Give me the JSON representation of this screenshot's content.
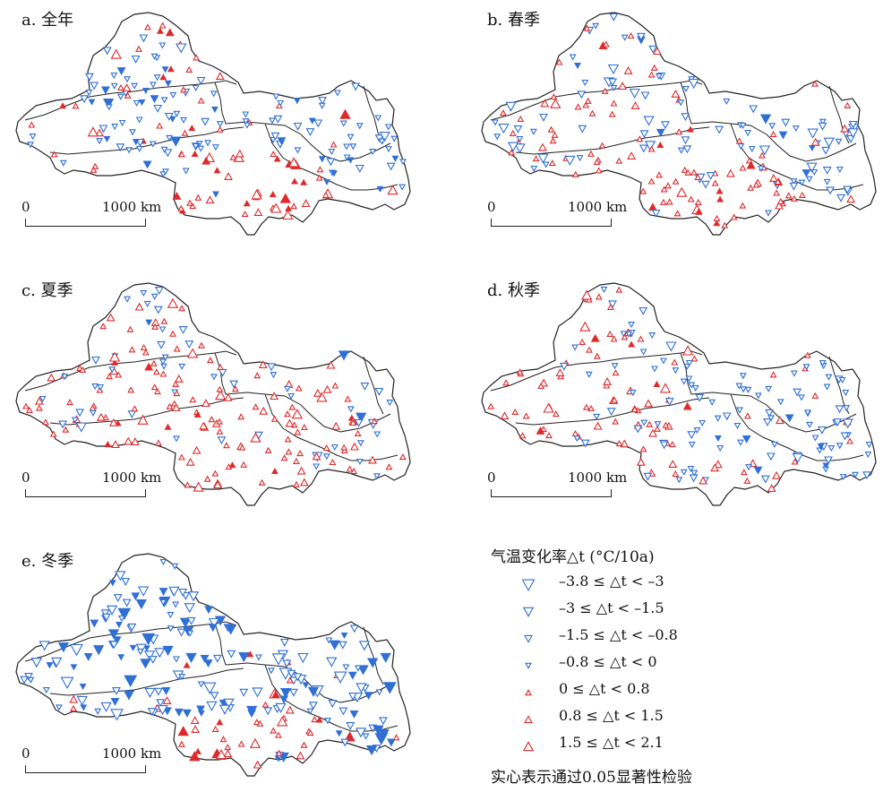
{
  "panels": [
    {
      "label": "a. 全年",
      "seed": 11,
      "profile": "annual"
    },
    {
      "label": "b. 春季",
      "seed": 23,
      "profile": "spring"
    },
    {
      "label": "c. 夏季",
      "seed": 37,
      "profile": "summer"
    },
    {
      "label": "d. 秋季",
      "seed": 41,
      "profile": "autumn"
    },
    {
      "label": "e. 冬季",
      "seed": 53,
      "profile": "winter"
    }
  ],
  "scalebar": {
    "zero": "0",
    "distance": "1000 km"
  },
  "legend": {
    "title": "气温变化率△t (°C/10a)",
    "classes": [
      {
        "label": "–3.8 ≤ △t < –3",
        "direction": "down",
        "level": 4,
        "color": "#2f6fd6"
      },
      {
        "label": "–3 ≤ △t < –1.5",
        "direction": "down",
        "level": 3,
        "color": "#2f6fd6"
      },
      {
        "label": "–1.5 ≤ △t < –0.8",
        "direction": "down",
        "level": 2,
        "color": "#2f6fd6"
      },
      {
        "label": "–0.8 ≤ △t < 0",
        "direction": "down",
        "level": 1,
        "color": "#2f6fd6"
      },
      {
        "label": "0 ≤ △t < 0.8",
        "direction": "up",
        "level": 1,
        "color": "#e0292b"
      },
      {
        "label": "0.8 ≤ △t < 1.5",
        "direction": "up",
        "level": 2,
        "color": "#e0292b"
      },
      {
        "label": "1.5 ≤ △t < 2.1",
        "direction": "up",
        "level": 3,
        "color": "#e0292b"
      }
    ],
    "note": "实心表示通过0.05显著性检验"
  },
  "colors": {
    "cooling": "#2f6fd6",
    "warming": "#e0292b",
    "boundary": "#222222"
  }
}
